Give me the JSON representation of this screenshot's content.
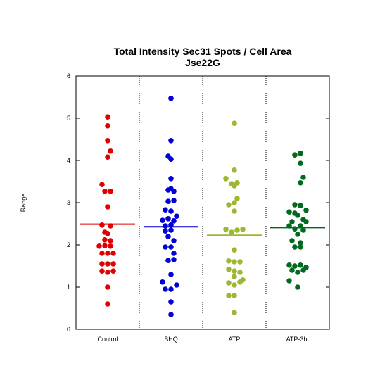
{
  "chart_data": {
    "type": "scatter",
    "title_lines": [
      "Total Intensity Sec31 Spots / Cell Area",
      "Jse22G"
    ],
    "ylabel": "Range",
    "xlabel": "",
    "ylim": [
      0,
      6
    ],
    "yticks": [
      "0",
      "1",
      "2",
      "3",
      "4",
      "5",
      "6"
    ],
    "grid": false,
    "categories": [
      "Control",
      "BHQ",
      "ATP",
      "ATP-3hr"
    ],
    "groups": [
      {
        "category": "Control",
        "color": "#e00000",
        "mean": 2.49,
        "points": [
          {
            "slot": 0,
            "y": 5.03
          },
          {
            "slot": 0,
            "y": 4.82
          },
          {
            "slot": 0,
            "y": 4.47
          },
          {
            "slot": 2,
            "y": 4.22
          },
          {
            "slot": 0,
            "y": 4.08
          },
          {
            "slot": -4,
            "y": 3.43
          },
          {
            "slot": -2,
            "y": 3.27
          },
          {
            "slot": 2,
            "y": 3.27
          },
          {
            "slot": 0,
            "y": 2.9
          },
          {
            "slot": -4,
            "y": 2.47
          },
          {
            "slot": 2,
            "y": 2.45
          },
          {
            "slot": -2,
            "y": 2.3
          },
          {
            "slot": 0,
            "y": 2.27
          },
          {
            "slot": -2,
            "y": 2.12
          },
          {
            "slot": 2,
            "y": 2.1
          },
          {
            "slot": -6,
            "y": 1.97
          },
          {
            "slot": -2,
            "y": 1.98
          },
          {
            "slot": 2,
            "y": 1.97
          },
          {
            "slot": -4,
            "y": 1.8
          },
          {
            "slot": 0,
            "y": 1.8
          },
          {
            "slot": 4,
            "y": 1.8
          },
          {
            "slot": -4,
            "y": 1.55
          },
          {
            "slot": 0,
            "y": 1.55
          },
          {
            "slot": 4,
            "y": 1.55
          },
          {
            "slot": -4,
            "y": 1.38
          },
          {
            "slot": 0,
            "y": 1.35
          },
          {
            "slot": 4,
            "y": 1.38
          },
          {
            "slot": 0,
            "y": 1.0
          },
          {
            "slot": 0,
            "y": 0.6
          }
        ]
      },
      {
        "category": "BHQ",
        "color": "#0000d8",
        "mean": 2.43,
        "points": [
          {
            "slot": 0,
            "y": 5.47
          },
          {
            "slot": 0,
            "y": 4.47
          },
          {
            "slot": -2,
            "y": 4.1
          },
          {
            "slot": 0,
            "y": 4.03
          },
          {
            "slot": 0,
            "y": 3.57
          },
          {
            "slot": -2,
            "y": 3.3
          },
          {
            "slot": 0,
            "y": 3.33
          },
          {
            "slot": 2,
            "y": 3.27
          },
          {
            "slot": -2,
            "y": 3.03
          },
          {
            "slot": 2,
            "y": 3.05
          },
          {
            "slot": -4,
            "y": 2.83
          },
          {
            "slot": 0,
            "y": 2.8
          },
          {
            "slot": 4,
            "y": 2.68
          },
          {
            "slot": -6,
            "y": 2.58
          },
          {
            "slot": -2,
            "y": 2.62
          },
          {
            "slot": 2,
            "y": 2.57
          },
          {
            "slot": -4,
            "y": 2.45
          },
          {
            "slot": 0,
            "y": 2.47
          },
          {
            "slot": -4,
            "y": 2.33
          },
          {
            "slot": 0,
            "y": 2.35
          },
          {
            "slot": -2,
            "y": 2.2
          },
          {
            "slot": 2,
            "y": 2.1
          },
          {
            "slot": -4,
            "y": 1.95
          },
          {
            "slot": 0,
            "y": 1.95
          },
          {
            "slot": 2,
            "y": 1.8
          },
          {
            "slot": -2,
            "y": 1.63
          },
          {
            "slot": 2,
            "y": 1.65
          },
          {
            "slot": 0,
            "y": 1.3
          },
          {
            "slot": -6,
            "y": 1.12
          },
          {
            "slot": -4,
            "y": 0.95
          },
          {
            "slot": 0,
            "y": 0.95
          },
          {
            "slot": 4,
            "y": 1.05
          },
          {
            "slot": 0,
            "y": 0.65
          },
          {
            "slot": 0,
            "y": 0.35
          }
        ]
      },
      {
        "category": "ATP",
        "color": "#9ab832",
        "mean": 2.23,
        "points": [
          {
            "slot": 0,
            "y": 4.88
          },
          {
            "slot": 0,
            "y": 3.77
          },
          {
            "slot": -6,
            "y": 3.57
          },
          {
            "slot": -2,
            "y": 3.45
          },
          {
            "slot": 2,
            "y": 3.47
          },
          {
            "slot": 0,
            "y": 3.4
          },
          {
            "slot": 2,
            "y": 3.1
          },
          {
            "slot": -4,
            "y": 2.95
          },
          {
            "slot": 0,
            "y": 3.0
          },
          {
            "slot": 0,
            "y": 2.8
          },
          {
            "slot": -6,
            "y": 2.37
          },
          {
            "slot": -2,
            "y": 2.3
          },
          {
            "slot": 2,
            "y": 2.35
          },
          {
            "slot": 6,
            "y": 2.37
          },
          {
            "slot": 0,
            "y": 1.88
          },
          {
            "slot": -4,
            "y": 1.62
          },
          {
            "slot": 0,
            "y": 1.6
          },
          {
            "slot": 4,
            "y": 1.6
          },
          {
            "slot": -4,
            "y": 1.42
          },
          {
            "slot": 0,
            "y": 1.38
          },
          {
            "slot": 0,
            "y": 1.25
          },
          {
            "slot": 4,
            "y": 1.35
          },
          {
            "slot": -4,
            "y": 1.1
          },
          {
            "slot": 0,
            "y": 1.05
          },
          {
            "slot": 4,
            "y": 1.12
          },
          {
            "slot": 6,
            "y": 1.17
          },
          {
            "slot": -4,
            "y": 0.8
          },
          {
            "slot": 0,
            "y": 0.8
          },
          {
            "slot": 0,
            "y": 0.4
          }
        ]
      },
      {
        "category": "ATP-3hr",
        "color": "#006a1e",
        "mean": 2.41,
        "points": [
          {
            "slot": -2,
            "y": 4.13
          },
          {
            "slot": 2,
            "y": 4.17
          },
          {
            "slot": 2,
            "y": 3.93
          },
          {
            "slot": 4,
            "y": 3.6
          },
          {
            "slot": 2,
            "y": 3.47
          },
          {
            "slot": -2,
            "y": 2.95
          },
          {
            "slot": 2,
            "y": 2.93
          },
          {
            "slot": -6,
            "y": 2.78
          },
          {
            "slot": -2,
            "y": 2.75
          },
          {
            "slot": 6,
            "y": 2.82
          },
          {
            "slot": 0,
            "y": 2.7
          },
          {
            "slot": -4,
            "y": 2.55
          },
          {
            "slot": 4,
            "y": 2.6
          },
          {
            "slot": 6,
            "y": 2.55
          },
          {
            "slot": -6,
            "y": 2.45
          },
          {
            "slot": 2,
            "y": 2.45
          },
          {
            "slot": -2,
            "y": 2.38
          },
          {
            "slot": 4,
            "y": 2.35
          },
          {
            "slot": 0,
            "y": 2.25
          },
          {
            "slot": 2,
            "y": 2.05
          },
          {
            "slot": -4,
            "y": 2.1
          },
          {
            "slot": -2,
            "y": 1.95
          },
          {
            "slot": 2,
            "y": 1.95
          },
          {
            "slot": -6,
            "y": 1.52
          },
          {
            "slot": -2,
            "y": 1.5
          },
          {
            "slot": 2,
            "y": 1.52
          },
          {
            "slot": 6,
            "y": 1.47
          },
          {
            "slot": -4,
            "y": 1.4
          },
          {
            "slot": 0,
            "y": 1.35
          },
          {
            "slot": 4,
            "y": 1.4
          },
          {
            "slot": -6,
            "y": 1.15
          },
          {
            "slot": 0,
            "y": 1.0
          }
        ]
      }
    ]
  }
}
